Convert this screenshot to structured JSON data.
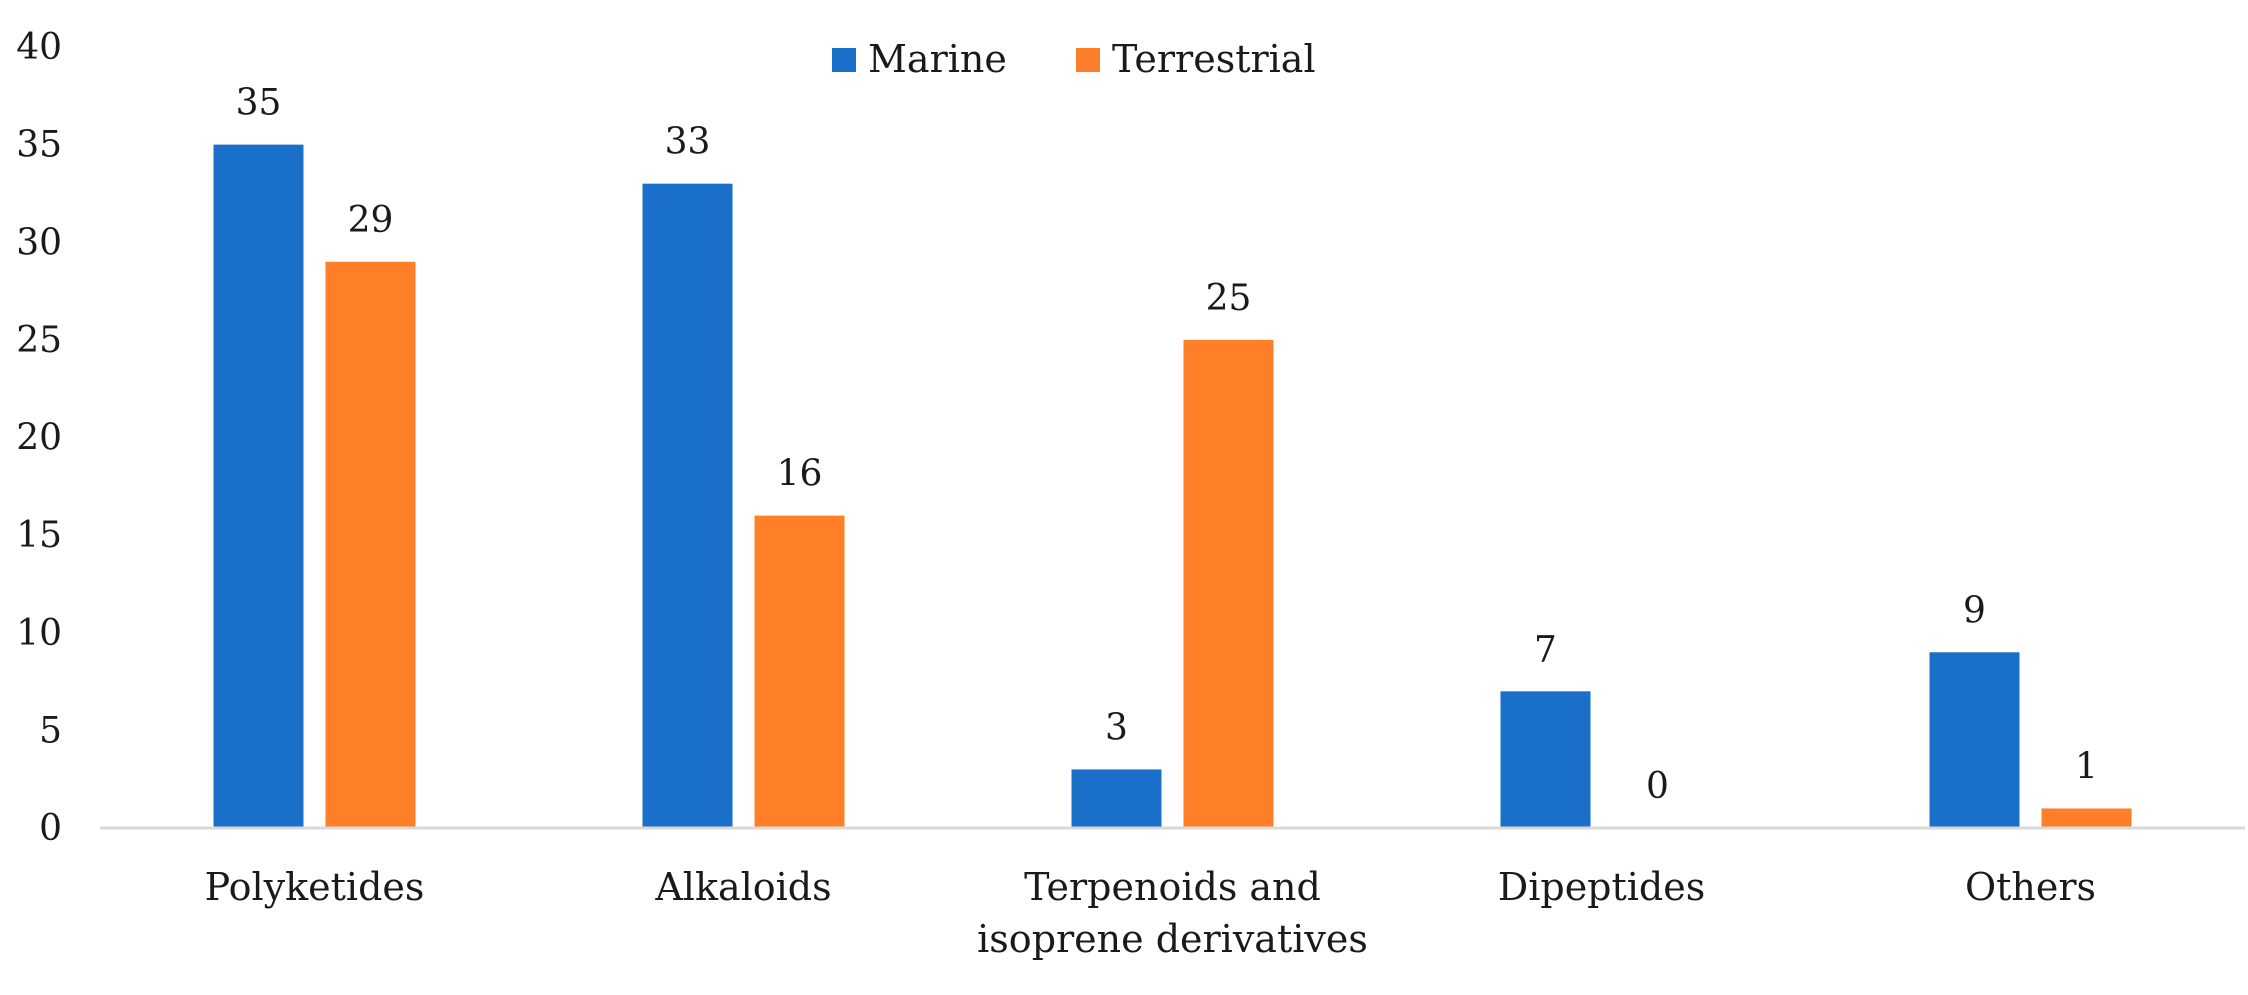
{
  "chart_data": {
    "type": "bar",
    "title": "",
    "xlabel": "",
    "ylabel": "",
    "ylim": [
      0,
      40
    ],
    "yticks": [
      0,
      5,
      10,
      15,
      20,
      25,
      30,
      35,
      40
    ],
    "grid": false,
    "legend_position": "top-center",
    "categories": [
      [
        "Polyketides"
      ],
      [
        "Alkaloids"
      ],
      [
        "Terpenoids and",
        "isoprene derivatives"
      ],
      [
        "Dipeptides"
      ],
      [
        "Others"
      ]
    ],
    "series": [
      {
        "name": "Marine",
        "color": "#1a70c9",
        "values": [
          35,
          33,
          3,
          7,
          9
        ]
      },
      {
        "name": "Terrestrial",
        "color": "#fe7f27",
        "values": [
          29,
          16,
          25,
          0,
          1
        ]
      }
    ],
    "axis_color": "#d9d9d9"
  }
}
